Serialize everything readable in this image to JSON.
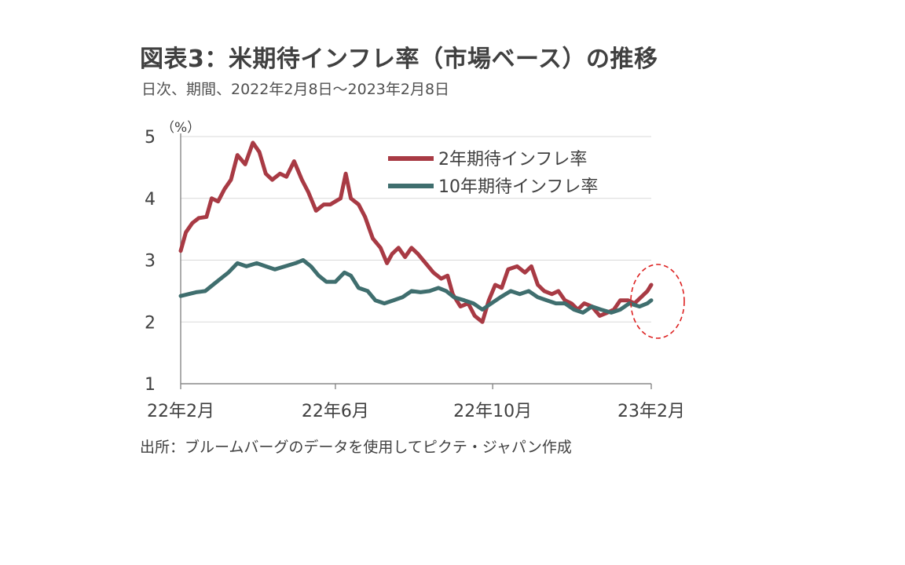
{
  "title": "図表3：米期待インフレ率（市場ベース）の推移",
  "subtitle": "日次、期間、2022年2月8日～2023年2月8日",
  "source": "出所：ブルームバーグのデータを使用してピクテ・ジャパン作成",
  "chart_data": {
    "type": "line",
    "y_unit": "（%）",
    "ylim": [
      1,
      5
    ],
    "y_ticks": [
      1,
      2,
      3,
      4,
      5
    ],
    "x_range": [
      "2022-02-08",
      "2023-02-08"
    ],
    "x_ticks": [
      {
        "date": "2022-02-08",
        "label": "22年2月"
      },
      {
        "date": "2022-06-08",
        "label": "22年6月"
      },
      {
        "date": "2022-10-08",
        "label": "22年10月"
      },
      {
        "date": "2023-02-08",
        "label": "23年2月"
      }
    ],
    "grid": "horizontal",
    "legend_position": "top-right",
    "annotation": "red dashed circle around the latest values",
    "series": [
      {
        "name": "2年期待インフレ率",
        "color": "#a83a44",
        "points": [
          [
            "2022-02-08",
            3.15
          ],
          [
            "2022-02-12",
            3.45
          ],
          [
            "2022-02-17",
            3.6
          ],
          [
            "2022-02-22",
            3.68
          ],
          [
            "2022-02-28",
            3.7
          ],
          [
            "2022-03-04",
            4.0
          ],
          [
            "2022-03-09",
            3.95
          ],
          [
            "2022-03-14",
            4.15
          ],
          [
            "2022-03-19",
            4.3
          ],
          [
            "2022-03-24",
            4.7
          ],
          [
            "2022-03-30",
            4.55
          ],
          [
            "2022-04-05",
            4.9
          ],
          [
            "2022-04-10",
            4.75
          ],
          [
            "2022-04-15",
            4.4
          ],
          [
            "2022-04-20",
            4.3
          ],
          [
            "2022-04-26",
            4.4
          ],
          [
            "2022-05-01",
            4.35
          ],
          [
            "2022-05-07",
            4.6
          ],
          [
            "2022-05-13",
            4.3
          ],
          [
            "2022-05-18",
            4.1
          ],
          [
            "2022-05-24",
            3.8
          ],
          [
            "2022-05-30",
            3.9
          ],
          [
            "2022-06-04",
            3.9
          ],
          [
            "2022-06-08",
            3.95
          ],
          [
            "2022-06-12",
            4.0
          ],
          [
            "2022-06-16",
            4.4
          ],
          [
            "2022-06-20",
            4.0
          ],
          [
            "2022-06-26",
            3.9
          ],
          [
            "2022-07-01",
            3.7
          ],
          [
            "2022-07-07",
            3.35
          ],
          [
            "2022-07-13",
            3.2
          ],
          [
            "2022-07-18",
            2.95
          ],
          [
            "2022-07-22",
            3.1
          ],
          [
            "2022-07-27",
            3.2
          ],
          [
            "2022-08-01",
            3.05
          ],
          [
            "2022-08-06",
            3.2
          ],
          [
            "2022-08-11",
            3.1
          ],
          [
            "2022-08-17",
            2.95
          ],
          [
            "2022-08-23",
            2.8
          ],
          [
            "2022-08-29",
            2.7
          ],
          [
            "2022-09-03",
            2.75
          ],
          [
            "2022-09-07",
            2.45
          ],
          [
            "2022-09-13",
            2.25
          ],
          [
            "2022-09-19",
            2.3
          ],
          [
            "2022-09-24",
            2.1
          ],
          [
            "2022-09-30",
            2.0
          ],
          [
            "2022-10-05",
            2.35
          ],
          [
            "2022-10-10",
            2.6
          ],
          [
            "2022-10-15",
            2.55
          ],
          [
            "2022-10-20",
            2.85
          ],
          [
            "2022-10-27",
            2.9
          ],
          [
            "2022-11-02",
            2.8
          ],
          [
            "2022-11-07",
            2.9
          ],
          [
            "2022-11-12",
            2.6
          ],
          [
            "2022-11-17",
            2.5
          ],
          [
            "2022-11-23",
            2.45
          ],
          [
            "2022-11-28",
            2.5
          ],
          [
            "2022-12-03",
            2.35
          ],
          [
            "2022-12-08",
            2.3
          ],
          [
            "2022-12-13",
            2.2
          ],
          [
            "2022-12-18",
            2.3
          ],
          [
            "2022-12-24",
            2.25
          ],
          [
            "2022-12-30",
            2.1
          ],
          [
            "2023-01-05",
            2.15
          ],
          [
            "2023-01-10",
            2.2
          ],
          [
            "2023-01-15",
            2.35
          ],
          [
            "2023-01-21",
            2.35
          ],
          [
            "2023-01-26",
            2.3
          ],
          [
            "2023-01-31",
            2.4
          ],
          [
            "2023-02-05",
            2.5
          ],
          [
            "2023-02-08",
            2.6
          ]
        ]
      },
      {
        "name": "10年期待インフレ率",
        "color": "#3f6e6e",
        "points": [
          [
            "2022-02-08",
            2.42
          ],
          [
            "2022-02-14",
            2.45
          ],
          [
            "2022-02-20",
            2.48
          ],
          [
            "2022-02-27",
            2.5
          ],
          [
            "2022-03-05",
            2.6
          ],
          [
            "2022-03-11",
            2.7
          ],
          [
            "2022-03-17",
            2.8
          ],
          [
            "2022-03-24",
            2.95
          ],
          [
            "2022-03-31",
            2.9
          ],
          [
            "2022-04-08",
            2.95
          ],
          [
            "2022-04-15",
            2.9
          ],
          [
            "2022-04-22",
            2.85
          ],
          [
            "2022-04-30",
            2.9
          ],
          [
            "2022-05-08",
            2.95
          ],
          [
            "2022-05-14",
            3.0
          ],
          [
            "2022-05-20",
            2.9
          ],
          [
            "2022-05-26",
            2.75
          ],
          [
            "2022-06-01",
            2.65
          ],
          [
            "2022-06-08",
            2.65
          ],
          [
            "2022-06-15",
            2.8
          ],
          [
            "2022-06-20",
            2.75
          ],
          [
            "2022-06-26",
            2.55
          ],
          [
            "2022-07-03",
            2.5
          ],
          [
            "2022-07-09",
            2.35
          ],
          [
            "2022-07-16",
            2.3
          ],
          [
            "2022-07-23",
            2.35
          ],
          [
            "2022-07-30",
            2.4
          ],
          [
            "2022-08-06",
            2.5
          ],
          [
            "2022-08-13",
            2.48
          ],
          [
            "2022-08-20",
            2.5
          ],
          [
            "2022-08-27",
            2.55
          ],
          [
            "2022-09-02",
            2.5
          ],
          [
            "2022-09-08",
            2.4
          ],
          [
            "2022-09-16",
            2.35
          ],
          [
            "2022-09-23",
            2.3
          ],
          [
            "2022-09-30",
            2.2
          ],
          [
            "2022-10-07",
            2.3
          ],
          [
            "2022-10-14",
            2.4
          ],
          [
            "2022-10-22",
            2.5
          ],
          [
            "2022-10-29",
            2.45
          ],
          [
            "2022-11-05",
            2.5
          ],
          [
            "2022-11-12",
            2.4
          ],
          [
            "2022-11-19",
            2.35
          ],
          [
            "2022-11-26",
            2.3
          ],
          [
            "2022-12-03",
            2.3
          ],
          [
            "2022-12-10",
            2.2
          ],
          [
            "2022-12-17",
            2.15
          ],
          [
            "2022-12-24",
            2.25
          ],
          [
            "2022-12-31",
            2.2
          ],
          [
            "2023-01-08",
            2.15
          ],
          [
            "2023-01-15",
            2.2
          ],
          [
            "2023-01-22",
            2.3
          ],
          [
            "2023-01-30",
            2.25
          ],
          [
            "2023-02-05",
            2.3
          ],
          [
            "2023-02-08",
            2.35
          ]
        ]
      }
    ]
  }
}
